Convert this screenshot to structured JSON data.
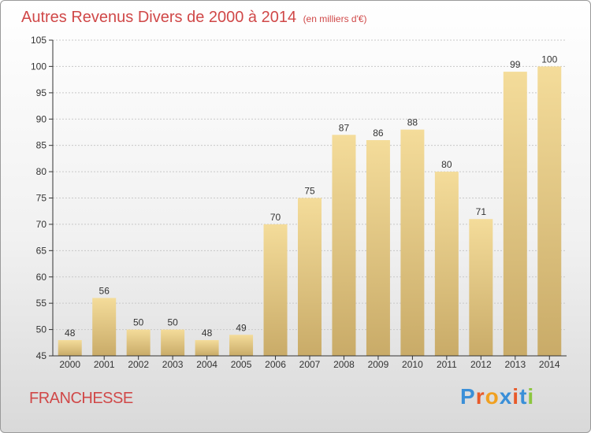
{
  "header": {
    "title": "Autres Revenus Divers de 2000 à 2014",
    "subtitle": "(en milliers d'€)"
  },
  "footer": {
    "commune": "FRANCHESSE",
    "logo_text": "Proxiti",
    "logo_colors": [
      "#3a8fd8",
      "#e85a2a",
      "#f0a020",
      "#3a8fd8",
      "#e85a2a",
      "#3a8fd8",
      "#8cc63f"
    ]
  },
  "colors": {
    "title": "#d04848",
    "bar_top": "#f4dc9a",
    "bar_bottom": "#c9ab68",
    "axis": "#333333",
    "grid": "#c8c8c8"
  },
  "chart_data": {
    "type": "bar",
    "categories": [
      "2000",
      "2001",
      "2002",
      "2003",
      "2004",
      "2005",
      "2006",
      "2007",
      "2008",
      "2009",
      "2010",
      "2011",
      "2012",
      "2013",
      "2014"
    ],
    "values": [
      48,
      56,
      50,
      50,
      48,
      49,
      70,
      75,
      87,
      86,
      88,
      80,
      71,
      99,
      100
    ],
    "ylim": [
      45,
      105
    ],
    "yticks": [
      45,
      50,
      55,
      60,
      65,
      70,
      75,
      80,
      85,
      90,
      95,
      100,
      105
    ],
    "grid": true,
    "legend": "none"
  }
}
